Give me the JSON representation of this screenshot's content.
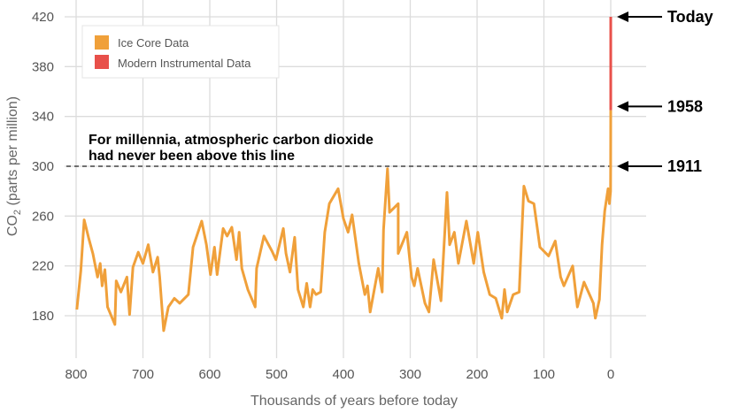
{
  "chart_data": {
    "type": "line",
    "xlabel": "Thousands of years before today",
    "ylabel": "CO2 (parts per million)",
    "ylabel_main": "CO",
    "ylabel_sub": "2",
    "ylabel_rest": " (parts per million)",
    "xlim": [
      815,
      -55
    ],
    "ylim": [
      137,
      420
    ],
    "x_ticks": [
      800,
      700,
      600,
      500,
      400,
      300,
      200,
      100,
      0
    ],
    "y_ticks": [
      180,
      220,
      260,
      300,
      340,
      380,
      420
    ],
    "grid": true,
    "legend_position": "top-left",
    "series": [
      {
        "name": "Ice Core Data",
        "color": "#f0a03a",
        "x": [
          799,
          793,
          788,
          781,
          775,
          768,
          764,
          761,
          757,
          753,
          746,
          742,
          740,
          733,
          724,
          720,
          715,
          707,
          700,
          692,
          685,
          678,
          675,
          669,
          662,
          653,
          645,
          632,
          625,
          612,
          605,
          599,
          593,
          589,
          580,
          574,
          567,
          560,
          556,
          552,
          543,
          532,
          530,
          519,
          507,
          501,
          490,
          486,
          480,
          473,
          468,
          460,
          455,
          450,
          446,
          441,
          434,
          428,
          421,
          408,
          400,
          393,
          387,
          377,
          368,
          364,
          360,
          348,
          342,
          340,
          334,
          331,
          318,
          318,
          305,
          298,
          294,
          289,
          278,
          272,
          265,
          254,
          245,
          241,
          234,
          228,
          216,
          205,
          199,
          190,
          181,
          172,
          163,
          159,
          155,
          146,
          137,
          130,
          123,
          115,
          106,
          93,
          83,
          75,
          70,
          57,
          50,
          40,
          26,
          23,
          17,
          13,
          9,
          4,
          2,
          0.3,
          0.1,
          0.03
        ],
        "y": [
          185,
          216,
          257,
          242,
          230,
          211,
          222,
          204,
          217,
          187,
          178,
          173,
          208,
          199,
          211,
          181,
          219,
          231,
          222,
          237,
          215,
          227,
          211,
          168,
          187,
          194,
          190,
          197,
          235,
          256,
          237,
          213,
          235,
          213,
          250,
          244,
          251,
          225,
          247,
          218,
          201,
          187,
          218,
          244,
          232,
          225,
          250,
          230,
          215,
          243,
          201,
          187,
          206,
          187,
          201,
          197,
          199,
          247,
          270,
          282,
          258,
          247,
          261,
          222,
          197,
          204,
          183,
          218,
          199,
          249,
          298,
          263,
          270,
          230,
          247,
          211,
          204,
          218,
          190,
          183,
          225,
          192,
          279,
          237,
          247,
          222,
          256,
          222,
          247,
          215,
          197,
          194,
          178,
          201,
          183,
          197,
          199,
          284,
          272,
          270,
          235,
          228,
          240,
          211,
          204,
          220,
          187,
          207,
          190,
          178,
          193,
          237,
          264,
          282,
          270,
          280,
          300,
          345
        ]
      },
      {
        "name": "Modern Instrumental Data",
        "color": "#e8504a",
        "x": [
          0.02,
          0
        ],
        "y": [
          345,
          420
        ]
      }
    ],
    "threshold": {
      "value": 300,
      "text_line1": "For millennia, atmospheric carbon dioxide",
      "text_line2": "had never been above this line"
    },
    "markers": [
      {
        "label": "Today",
        "value": 420
      },
      {
        "label": "1958",
        "value": 348
      },
      {
        "label": "1911",
        "value": 300
      }
    ]
  }
}
